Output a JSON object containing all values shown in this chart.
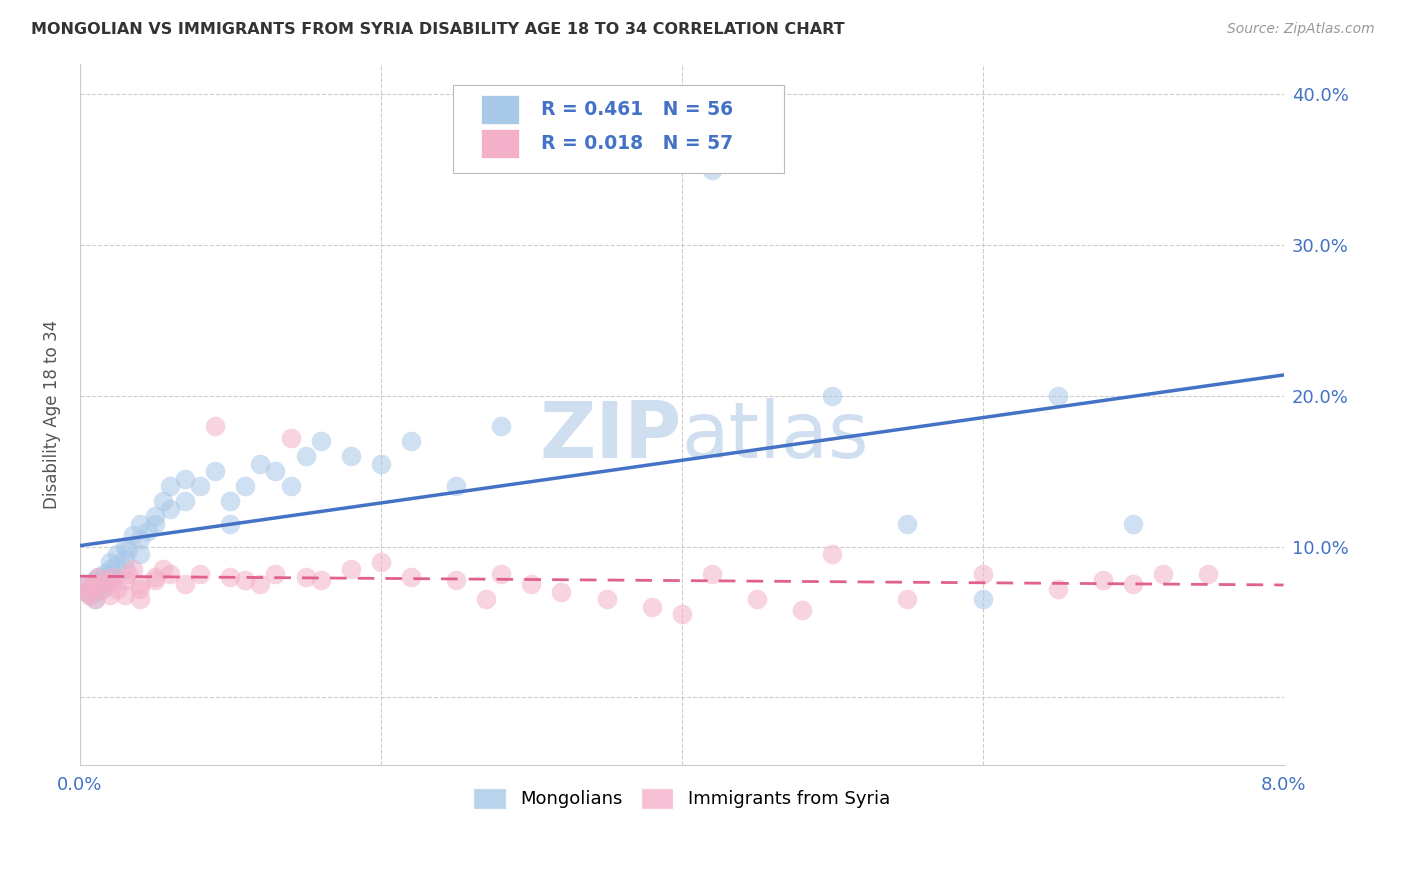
{
  "title": "MONGOLIAN VS IMMIGRANTS FROM SYRIA DISABILITY AGE 18 TO 34 CORRELATION CHART",
  "source": "Source: ZipAtlas.com",
  "ylabel": "Disability Age 18 to 34",
  "xlim": [
    0.0,
    0.08
  ],
  "ylim": [
    -0.045,
    0.42
  ],
  "yticks": [
    0.0,
    0.1,
    0.2,
    0.3,
    0.4
  ],
  "xticks": [
    0.0,
    0.02,
    0.04,
    0.06,
    0.08
  ],
  "mongolian_R": 0.461,
  "mongolian_N": 56,
  "syria_R": 0.018,
  "syria_N": 57,
  "mongolian_color": "#a8c8e8",
  "syria_color": "#f4b0c8",
  "mongolian_line_color": "#4472c4",
  "syria_line_color": "#e06090",
  "text_color_blue": "#4472c4",
  "text_color_dark": "#222222",
  "watermark_color": "#d0dff0",
  "background_color": "#ffffff",
  "grid_color": "#cccccc",
  "mongolian_x": [
    0.0003,
    0.0005,
    0.0006,
    0.0007,
    0.0008,
    0.001,
    0.001,
    0.001,
    0.0012,
    0.0013,
    0.0015,
    0.0016,
    0.0018,
    0.002,
    0.002,
    0.002,
    0.0022,
    0.0024,
    0.0025,
    0.003,
    0.003,
    0.003,
    0.0032,
    0.0035,
    0.004,
    0.004,
    0.004,
    0.0045,
    0.005,
    0.005,
    0.0055,
    0.006,
    0.006,
    0.007,
    0.007,
    0.008,
    0.009,
    0.01,
    0.01,
    0.011,
    0.012,
    0.013,
    0.014,
    0.015,
    0.016,
    0.018,
    0.02,
    0.022,
    0.025,
    0.028,
    0.042,
    0.05,
    0.055,
    0.06,
    0.065,
    0.07
  ],
  "mongolian_y": [
    0.075,
    0.07,
    0.072,
    0.068,
    0.073,
    0.065,
    0.07,
    0.078,
    0.08,
    0.075,
    0.072,
    0.082,
    0.076,
    0.085,
    0.09,
    0.082,
    0.078,
    0.088,
    0.095,
    0.1,
    0.085,
    0.092,
    0.098,
    0.108,
    0.095,
    0.105,
    0.115,
    0.11,
    0.115,
    0.12,
    0.13,
    0.125,
    0.14,
    0.13,
    0.145,
    0.14,
    0.15,
    0.115,
    0.13,
    0.14,
    0.155,
    0.15,
    0.14,
    0.16,
    0.17,
    0.16,
    0.155,
    0.17,
    0.14,
    0.18,
    0.35,
    0.2,
    0.115,
    0.065,
    0.2,
    0.115
  ],
  "syria_x": [
    0.0003,
    0.0005,
    0.0006,
    0.0007,
    0.0008,
    0.001,
    0.001,
    0.0012,
    0.0015,
    0.0018,
    0.002,
    0.002,
    0.0022,
    0.0025,
    0.003,
    0.003,
    0.0032,
    0.0035,
    0.004,
    0.004,
    0.004,
    0.005,
    0.005,
    0.0055,
    0.006,
    0.007,
    0.008,
    0.009,
    0.01,
    0.011,
    0.012,
    0.013,
    0.014,
    0.015,
    0.016,
    0.018,
    0.02,
    0.022,
    0.025,
    0.027,
    0.028,
    0.03,
    0.032,
    0.035,
    0.038,
    0.04,
    0.042,
    0.045,
    0.048,
    0.05,
    0.055,
    0.06,
    0.065,
    0.068,
    0.07,
    0.072,
    0.075
  ],
  "syria_y": [
    0.073,
    0.07,
    0.068,
    0.072,
    0.075,
    0.065,
    0.075,
    0.08,
    0.072,
    0.078,
    0.075,
    0.068,
    0.08,
    0.072,
    0.078,
    0.068,
    0.082,
    0.085,
    0.075,
    0.065,
    0.072,
    0.08,
    0.078,
    0.085,
    0.082,
    0.075,
    0.082,
    0.18,
    0.08,
    0.078,
    0.075,
    0.082,
    0.172,
    0.08,
    0.078,
    0.085,
    0.09,
    0.08,
    0.078,
    0.065,
    0.082,
    0.075,
    0.07,
    0.065,
    0.06,
    0.055,
    0.082,
    0.065,
    0.058,
    0.095,
    0.065,
    0.082,
    0.072,
    0.078,
    0.075,
    0.082,
    0.082
  ]
}
